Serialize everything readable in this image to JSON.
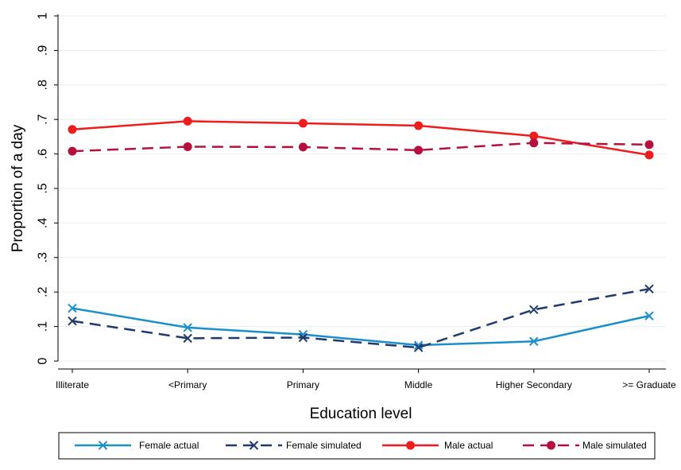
{
  "chart_data": {
    "type": "line",
    "title": "",
    "xlabel": "Education level",
    "ylabel": "Proportion of a day",
    "categories": [
      "Illiterate",
      "<Primary",
      "Primary",
      "Middle",
      "Higher Secondary",
      ">= Graduate"
    ],
    "ylim": [
      0,
      1
    ],
    "yticks": [
      {
        "value": 0,
        "label": "0"
      },
      {
        "value": 0.1,
        "label": ".1"
      },
      {
        "value": 0.2,
        "label": ".2"
      },
      {
        "value": 0.3,
        "label": ".3"
      },
      {
        "value": 0.4,
        "label": ".4"
      },
      {
        "value": 0.5,
        "label": ".5"
      },
      {
        "value": 0.6,
        "label": ".6"
      },
      {
        "value": 0.7,
        "label": ".7"
      },
      {
        "value": 0.8,
        "label": ".8"
      },
      {
        "value": 0.9,
        "label": ".9"
      },
      {
        "value": 1,
        "label": "1"
      }
    ],
    "grid": true,
    "legend_position": "bottom",
    "series": [
      {
        "name": "Female actual",
        "color": "#1a8fc9",
        "dash": "solid",
        "marker": "x",
        "values": [
          0.153,
          0.097,
          0.077,
          0.046,
          0.057,
          0.131
        ]
      },
      {
        "name": "Female simulated",
        "color": "#1f3b6e",
        "dash": "dashed",
        "marker": "x",
        "values": [
          0.116,
          0.066,
          0.068,
          0.039,
          0.149,
          0.209
        ]
      },
      {
        "name": "Male actual",
        "color": "#ee1c1c",
        "dash": "solid",
        "marker": "circle",
        "values": [
          0.671,
          0.695,
          0.689,
          0.682,
          0.652,
          0.597
        ]
      },
      {
        "name": "Male simulated",
        "color": "#b5103e",
        "dash": "dashed",
        "marker": "circle",
        "values": [
          0.608,
          0.621,
          0.62,
          0.611,
          0.632,
          0.627
        ]
      }
    ]
  }
}
